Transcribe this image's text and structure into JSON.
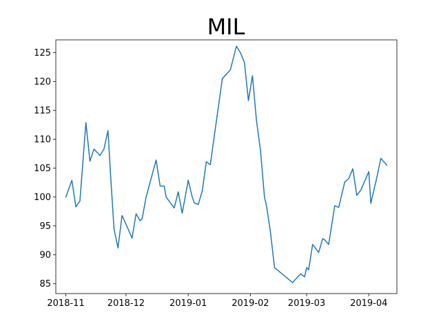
{
  "chart_data": {
    "type": "line",
    "title": "MIL",
    "xlabel": "",
    "ylabel": "",
    "grid": false,
    "legend": "none",
    "color": "#1f77b4",
    "xlim": [
      "2018-10-27",
      "2019-04-15"
    ],
    "ylim": [
      83.3,
      127.2
    ],
    "x_ticks": [
      "2018-11-01",
      "2018-12-01",
      "2019-01-01",
      "2019-02-01",
      "2019-03-01",
      "2019-04-01"
    ],
    "x_tick_labels": [
      "2018-11",
      "2018-12",
      "2019-01",
      "2019-02",
      "2019-03",
      "2019-04"
    ],
    "y_ticks": [
      85,
      90,
      95,
      100,
      105,
      110,
      115,
      120,
      125
    ],
    "y_tick_labels": [
      "85",
      "90",
      "95",
      "100",
      "105",
      "110",
      "115",
      "120",
      "125"
    ],
    "series": [
      {
        "x": [
          "2018-11-01",
          "2018-11-04",
          "2018-11-06",
          "2018-11-07",
          "2018-11-08",
          "2018-11-11",
          "2018-11-13",
          "2018-11-15",
          "2018-11-18",
          "2018-11-20",
          "2018-11-22",
          "2018-11-23",
          "2018-11-25",
          "2018-11-27",
          "2018-11-29",
          "2018-12-01",
          "2018-12-04",
          "2018-12-06",
          "2018-12-08",
          "2018-12-09",
          "2018-12-11",
          "2018-12-16",
          "2018-12-18",
          "2018-12-20",
          "2018-12-21",
          "2018-12-25",
          "2018-12-27",
          "2018-12-29",
          "2019-01-01",
          "2019-01-03",
          "2019-01-04",
          "2019-01-06",
          "2019-01-08",
          "2019-01-10",
          "2019-01-12",
          "2019-01-14",
          "2019-01-18",
          "2019-01-22",
          "2019-01-25",
          "2019-01-27",
          "2019-01-29",
          "2019-01-31",
          "2019-02-02",
          "2019-02-04",
          "2019-02-06",
          "2019-02-08",
          "2019-02-09",
          "2019-02-11",
          "2019-02-13",
          "2019-02-22",
          "2019-02-26",
          "2019-02-28",
          "2019-03-01",
          "2019-03-02",
          "2019-03-04",
          "2019-03-07",
          "2019-03-09",
          "2019-03-10",
          "2019-03-12",
          "2019-03-15",
          "2019-03-17",
          "2019-03-20",
          "2019-03-22",
          "2019-03-24",
          "2019-03-26",
          "2019-03-28",
          "2019-04-01",
          "2019-04-02",
          "2019-04-05",
          "2019-04-07",
          "2019-04-10"
        ],
        "y": [
          100.0,
          102.9,
          98.3,
          98.8,
          99.3,
          112.9,
          106.2,
          108.3,
          107.2,
          108.3,
          111.5,
          105.5,
          94.5,
          91.2,
          96.8,
          95.3,
          92.9,
          97.1,
          95.9,
          96.2,
          100.0,
          106.4,
          101.9,
          101.9,
          100.0,
          98.1,
          100.9,
          97.2,
          102.9,
          100.0,
          99.0,
          98.7,
          101.1,
          106.1,
          105.6,
          110.6,
          120.5,
          122.0,
          126.1,
          125.0,
          123.3,
          116.7,
          121.0,
          113.3,
          108.1,
          100.0,
          98.5,
          93.9,
          87.8,
          85.2,
          86.7,
          86.2,
          87.8,
          87.4,
          91.8,
          90.4,
          92.8,
          92.6,
          91.8,
          98.5,
          98.2,
          102.6,
          103.2,
          104.9,
          100.3,
          101.2,
          104.4,
          98.9,
          103.4,
          106.7,
          105.5
        ]
      }
    ]
  }
}
